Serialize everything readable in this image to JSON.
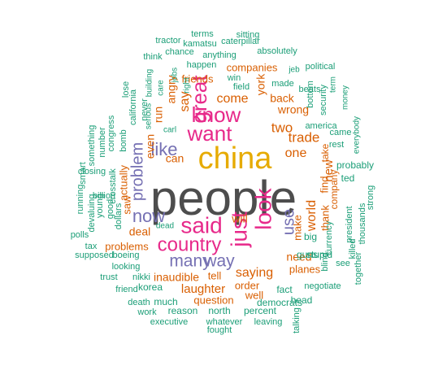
{
  "palette": {
    "green": "#1b9e77",
    "orange": "#d95f02",
    "purple": "#7570b3",
    "magenta": "#e7298a",
    "gold": "#e6ab02",
    "gray": "#4d4d4d"
  },
  "words": [
    {
      "text": "people",
      "color": "gray"
    },
    {
      "text": "china",
      "color": "gold"
    },
    {
      "text": "said",
      "color": "magenta"
    },
    {
      "text": "look",
      "color": "magenta"
    },
    {
      "text": "country",
      "color": "magenta"
    },
    {
      "text": "just",
      "color": "magenta"
    },
    {
      "text": "want",
      "color": "magenta"
    },
    {
      "text": "know",
      "color": "magenta"
    },
    {
      "text": "great",
      "color": "magenta"
    },
    {
      "text": "like",
      "color": "purple"
    },
    {
      "text": "problem",
      "color": "purple"
    },
    {
      "text": "now",
      "color": "purple"
    },
    {
      "text": "many",
      "color": "purple"
    },
    {
      "text": "way",
      "color": "purple"
    },
    {
      "text": "use",
      "color": "purple"
    },
    {
      "text": "one",
      "color": "orange"
    },
    {
      "text": "two",
      "color": "orange"
    },
    {
      "text": "trade",
      "color": "orange"
    },
    {
      "text": "world",
      "color": "orange"
    },
    {
      "text": "new",
      "color": "orange"
    },
    {
      "text": "saying",
      "color": "orange"
    },
    {
      "text": "laughter",
      "color": "orange"
    },
    {
      "text": "inaudible",
      "color": "orange"
    },
    {
      "text": "will",
      "color": "orange"
    },
    {
      "text": "deal",
      "color": "orange"
    },
    {
      "text": "need",
      "color": "orange"
    },
    {
      "text": "come",
      "color": "orange"
    },
    {
      "text": "say",
      "color": "orange"
    },
    {
      "text": "angry",
      "color": "orange"
    },
    {
      "text": "run",
      "color": "orange"
    },
    {
      "text": "even",
      "color": "orange"
    },
    {
      "text": "can",
      "color": "orange"
    },
    {
      "text": "wrong",
      "color": "orange"
    },
    {
      "text": "back",
      "color": "orange"
    },
    {
      "text": "york",
      "color": "orange"
    },
    {
      "text": "companies",
      "color": "orange"
    },
    {
      "text": "friends",
      "color": "orange"
    },
    {
      "text": "actually",
      "color": "orange"
    },
    {
      "text": "saw",
      "color": "orange"
    },
    {
      "text": "problems",
      "color": "orange"
    },
    {
      "text": "tell",
      "color": "orange"
    },
    {
      "text": "order",
      "color": "orange"
    },
    {
      "text": "well",
      "color": "orange"
    },
    {
      "text": "question",
      "color": "orange"
    },
    {
      "text": "make",
      "color": "orange"
    },
    {
      "text": "thank",
      "color": "orange"
    },
    {
      "text": "find",
      "color": "orange"
    },
    {
      "text": "company",
      "color": "orange"
    },
    {
      "text": "take",
      "color": "orange"
    },
    {
      "text": "planes",
      "color": "orange"
    },
    {
      "text": "happen",
      "color": "green"
    },
    {
      "text": "field",
      "color": "green"
    },
    {
      "text": "win",
      "color": "green"
    },
    {
      "text": "made",
      "color": "green"
    },
    {
      "text": "beats",
      "color": "green"
    },
    {
      "text": "bottom",
      "color": "green"
    },
    {
      "text": "security",
      "color": "green"
    },
    {
      "text": "america",
      "color": "green"
    },
    {
      "text": "came",
      "color": "green"
    },
    {
      "text": "rest",
      "color": "green"
    },
    {
      "text": "probably",
      "color": "green"
    },
    {
      "text": "ted",
      "color": "green"
    },
    {
      "text": "president",
      "color": "green"
    },
    {
      "text": "thousands",
      "color": "green"
    },
    {
      "text": "currency",
      "color": "green"
    },
    {
      "text": "big",
      "color": "green"
    },
    {
      "text": "blind",
      "color": "green"
    },
    {
      "text": "killed",
      "color": "green"
    },
    {
      "text": "strong",
      "color": "green"
    },
    {
      "text": "guns",
      "color": "green"
    },
    {
      "text": "stupid",
      "color": "green"
    },
    {
      "text": "see",
      "color": "green"
    },
    {
      "text": "together",
      "color": "green"
    },
    {
      "text": "negotiate",
      "color": "green"
    },
    {
      "text": "fact",
      "color": "green"
    },
    {
      "text": "democrats",
      "color": "green"
    },
    {
      "text": "head",
      "color": "green"
    },
    {
      "text": "percent",
      "color": "green"
    },
    {
      "text": "north",
      "color": "green"
    },
    {
      "text": "reason",
      "color": "green"
    },
    {
      "text": "much",
      "color": "green"
    },
    {
      "text": "korea",
      "color": "green"
    },
    {
      "text": "death",
      "color": "green"
    },
    {
      "text": "work",
      "color": "green"
    },
    {
      "text": "executive",
      "color": "green"
    },
    {
      "text": "whatever",
      "color": "green"
    },
    {
      "text": "leaving",
      "color": "green"
    },
    {
      "text": "fought",
      "color": "green"
    },
    {
      "text": "talking",
      "color": "green"
    },
    {
      "text": "looking",
      "color": "green"
    },
    {
      "text": "trust",
      "color": "green"
    },
    {
      "text": "nikki",
      "color": "green"
    },
    {
      "text": "friend",
      "color": "green"
    },
    {
      "text": "supposed",
      "color": "green"
    },
    {
      "text": "boeing",
      "color": "green"
    },
    {
      "text": "tax",
      "color": "green"
    },
    {
      "text": "polls",
      "color": "green"
    },
    {
      "text": "dead",
      "color": "green"
    },
    {
      "text": "billion",
      "color": "green"
    },
    {
      "text": "dollars",
      "color": "green"
    },
    {
      "text": "good",
      "color": "green"
    },
    {
      "text": "young",
      "color": "green"
    },
    {
      "text": "devaluing",
      "color": "green"
    },
    {
      "text": "running",
      "color": "green"
    },
    {
      "text": "smart",
      "color": "green"
    },
    {
      "text": "closing",
      "color": "green"
    },
    {
      "text": "something",
      "color": "green"
    },
    {
      "text": "number",
      "color": "green"
    },
    {
      "text": "crosstalk",
      "color": "green"
    },
    {
      "text": "congress",
      "color": "green"
    },
    {
      "text": "bomb",
      "color": "green"
    },
    {
      "text": "never",
      "color": "green"
    },
    {
      "text": "california",
      "color": "green"
    },
    {
      "text": "lose",
      "color": "green"
    },
    {
      "text": "serious",
      "color": "green"
    },
    {
      "text": "building",
      "color": "green"
    },
    {
      "text": "care",
      "color": "green"
    },
    {
      "text": "carl",
      "color": "green"
    },
    {
      "text": "jobs",
      "color": "green"
    },
    {
      "text": "right",
      "color": "green"
    },
    {
      "text": "think",
      "color": "green"
    },
    {
      "text": "chance",
      "color": "green"
    },
    {
      "text": "anything",
      "color": "green"
    },
    {
      "text": "tractor",
      "color": "green"
    },
    {
      "text": "kamatsu",
      "color": "green"
    },
    {
      "text": "caterpillar",
      "color": "green"
    },
    {
      "text": "terms",
      "color": "green"
    },
    {
      "text": "sitting",
      "color": "green"
    },
    {
      "text": "absolutely",
      "color": "green"
    },
    {
      "text": "jeb",
      "color": "green"
    },
    {
      "text": "political",
      "color": "green"
    },
    {
      "text": "term",
      "color": "green"
    },
    {
      "text": "money",
      "color": "green"
    },
    {
      "text": "everybody",
      "color": "green"
    }
  ]
}
